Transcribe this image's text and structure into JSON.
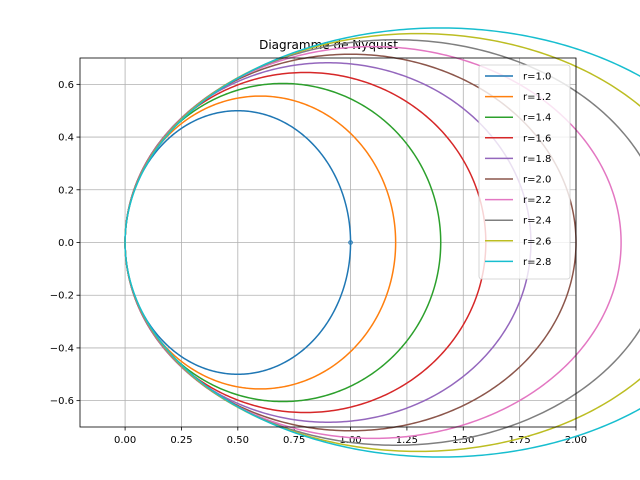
{
  "chart_data": {
    "type": "line",
    "title": "Diagramme de Nyquist",
    "xlabel": "",
    "ylabel": "",
    "xlim": [
      -0.2,
      2.0
    ],
    "ylim": [
      -0.7,
      0.7
    ],
    "x_ticks": [
      "0.00",
      "0.25",
      "0.50",
      "0.75",
      "1.00",
      "1.25",
      "1.50",
      "1.75",
      "2.00"
    ],
    "y_ticks": [
      "−0.6",
      "−0.4",
      "−0.2",
      "0.0",
      "0.2",
      "0.4",
      "0.6"
    ],
    "grid": true,
    "legend_position": "top-right",
    "marker_point": {
      "x": 1.0,
      "y": 0.0
    },
    "series": [
      {
        "name": "r=1.0",
        "r": 1.0,
        "color": "#1f77b4"
      },
      {
        "name": "r=1.2",
        "r": 1.2,
        "color": "#ff7f0e"
      },
      {
        "name": "r=1.4",
        "r": 1.4,
        "color": "#2ca02c"
      },
      {
        "name": "r=1.6",
        "r": 1.6,
        "color": "#d62728"
      },
      {
        "name": "r=1.8",
        "r": 1.8,
        "color": "#9467bd"
      },
      {
        "name": "r=2.0",
        "r": 2.0,
        "color": "#8c564b"
      },
      {
        "name": "r=2.2",
        "r": 2.2,
        "color": "#e377c2"
      },
      {
        "name": "r=2.4",
        "r": 2.4,
        "color": "#7f7f7f"
      },
      {
        "name": "r=2.6",
        "r": 2.6,
        "color": "#bcbd22"
      },
      {
        "name": "r=2.8",
        "r": 2.8,
        "color": "#17becf"
      }
    ]
  }
}
